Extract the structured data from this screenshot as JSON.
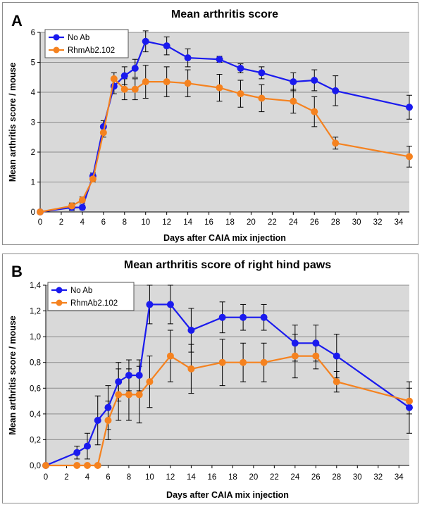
{
  "colors": {
    "no_ab": "#1a1aee",
    "rhmab": "#f5821f",
    "plot_bg": "#d9d9d9",
    "grid": "#8c8c8c"
  },
  "chart_data": [
    {
      "type": "line",
      "panel_label": "A",
      "title": "Mean arthritis score",
      "xlabel": "Days after CAIA mix injection",
      "ylabel": "Mean arthritis score / mouse",
      "xlim": [
        0,
        35
      ],
      "ylim": [
        0,
        6
      ],
      "xticks": [
        0,
        2,
        4,
        6,
        8,
        10,
        12,
        14,
        16,
        18,
        20,
        22,
        24,
        26,
        28,
        30,
        32,
        34
      ],
      "yticks": [
        0,
        1,
        2,
        3,
        4,
        5,
        6
      ],
      "tick_labels_x": [
        "0",
        "2",
        "4",
        "6",
        "8",
        "10",
        "12",
        "14",
        "16",
        "18",
        "20",
        "22",
        "24",
        "26",
        "28",
        "30",
        "32",
        "34"
      ],
      "tick_labels_y": [
        "0",
        "1",
        "2",
        "3",
        "4",
        "5",
        "6"
      ],
      "grid": "horizontal",
      "legend_position": "top-left",
      "series": [
        {
          "name": "No Ab",
          "x": [
            0,
            3,
            4,
            5,
            6,
            7,
            8,
            9,
            10,
            12,
            14,
            17,
            19,
            21,
            24,
            26,
            28,
            35
          ],
          "y": [
            0,
            0.15,
            0.15,
            1.2,
            2.85,
            4.2,
            4.55,
            4.8,
            5.7,
            5.55,
            5.15,
            5.1,
            4.8,
            4.65,
            4.35,
            4.4,
            4.05,
            3.5
          ],
          "err": [
            0,
            0.1,
            0.08,
            0.1,
            0.2,
            0.25,
            0.3,
            0.3,
            0.35,
            0.3,
            0.3,
            0.1,
            0.15,
            0.2,
            0.3,
            0.35,
            0.5,
            0.4
          ]
        },
        {
          "name": "RhmAb2.102",
          "x": [
            0,
            3,
            4,
            5,
            6,
            7,
            8,
            9,
            10,
            12,
            14,
            17,
            19,
            21,
            24,
            26,
            28,
            35
          ],
          "y": [
            0,
            0.2,
            0.4,
            1.1,
            2.65,
            4.45,
            4.1,
            4.1,
            4.35,
            4.35,
            4.3,
            4.15,
            3.95,
            3.8,
            3.7,
            3.35,
            2.3,
            1.85
          ],
          "err": [
            0,
            0.1,
            0.1,
            0.1,
            0.15,
            0.2,
            0.35,
            0.35,
            0.55,
            0.5,
            0.45,
            0.45,
            0.45,
            0.45,
            0.4,
            0.5,
            0.2,
            0.35
          ]
        }
      ]
    },
    {
      "type": "line",
      "panel_label": "B",
      "title": "Mean arthritis score of right hind paws",
      "xlabel": "Days after CAIA mix injection",
      "ylabel": "Mean arthritis score / mouse",
      "xlim": [
        0,
        35
      ],
      "ylim": [
        0,
        1.4
      ],
      "xticks": [
        0,
        2,
        4,
        6,
        8,
        10,
        12,
        14,
        16,
        18,
        20,
        22,
        24,
        26,
        28,
        30,
        32,
        34
      ],
      "yticks": [
        0,
        0.2,
        0.4,
        0.6,
        0.8,
        1.0,
        1.2,
        1.4
      ],
      "tick_labels_x": [
        "0",
        "2",
        "4",
        "6",
        "8",
        "10",
        "12",
        "14",
        "16",
        "18",
        "20",
        "22",
        "24",
        "26",
        "28",
        "30",
        "32",
        "34"
      ],
      "tick_labels_y": [
        "0,0",
        "0,2",
        "0,4",
        "0,6",
        "0,8",
        "1,0",
        "1,2",
        "1,4"
      ],
      "grid": "horizontal",
      "legend_position": "top-left",
      "series": [
        {
          "name": "No Ab",
          "x": [
            0,
            3,
            4,
            5,
            6,
            7,
            8,
            9,
            10,
            12,
            14,
            17,
            19,
            21,
            24,
            26,
            28,
            35
          ],
          "y": [
            0,
            0.1,
            0.15,
            0.35,
            0.45,
            0.65,
            0.7,
            0.7,
            1.25,
            1.25,
            1.05,
            1.15,
            1.15,
            1.15,
            0.95,
            0.95,
            0.85,
            0.45
          ],
          "err": [
            0,
            0.05,
            0.1,
            0.19,
            0.17,
            0.15,
            0.12,
            0.12,
            0.15,
            0.15,
            0.17,
            0.12,
            0.1,
            0.1,
            0.14,
            0.14,
            0.17,
            0.2
          ]
        },
        {
          "name": "RhmAb2.102",
          "x": [
            0,
            3,
            4,
            5,
            6,
            7,
            8,
            9,
            10,
            12,
            14,
            17,
            19,
            21,
            24,
            26,
            28,
            35
          ],
          "y": [
            0,
            0,
            0,
            0,
            0.35,
            0.55,
            0.55,
            0.55,
            0.65,
            0.85,
            0.75,
            0.8,
            0.8,
            0.8,
            0.85,
            0.85,
            0.65,
            0.5
          ],
          "err": [
            0,
            0,
            0,
            0,
            0.15,
            0.2,
            0.2,
            0.22,
            0.2,
            0.2,
            0.19,
            0.18,
            0.15,
            0.15,
            0.17,
            0.1,
            0.08,
            0.1
          ]
        }
      ]
    }
  ]
}
